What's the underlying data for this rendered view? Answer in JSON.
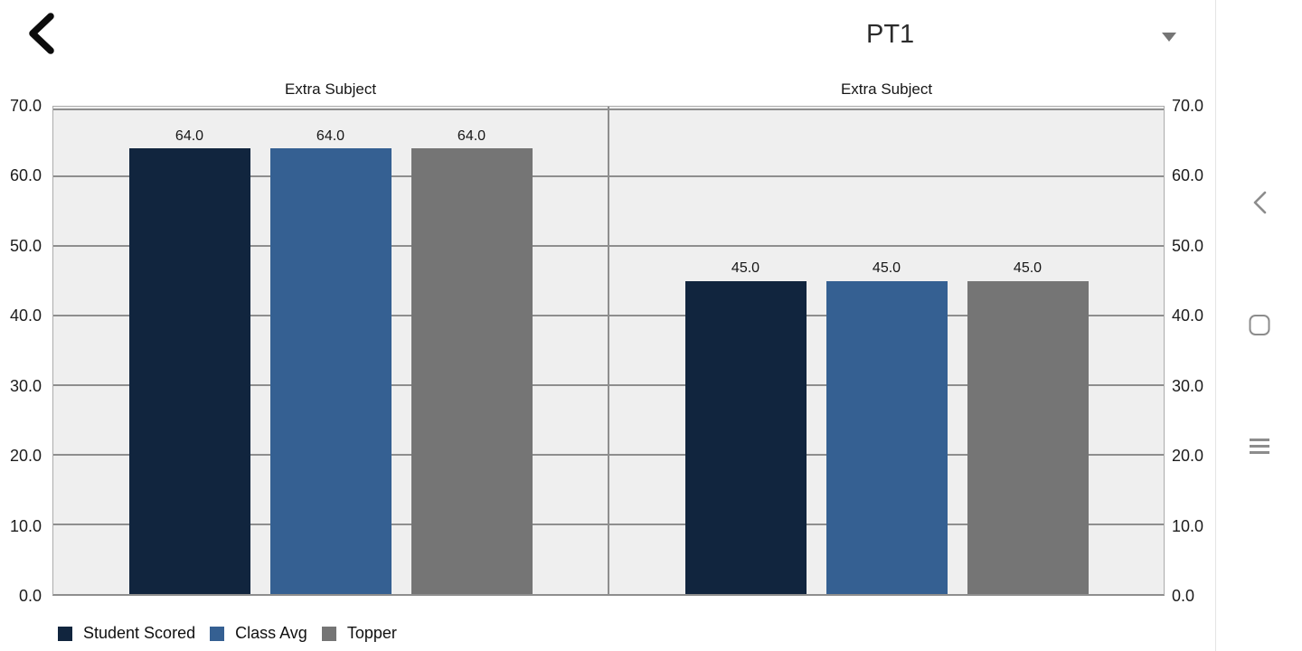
{
  "header": {
    "selector_value": "PT1"
  },
  "chart_data": {
    "type": "bar",
    "ylim": [
      0,
      70
    ],
    "yticks": [
      70,
      60,
      50,
      40,
      30,
      20,
      10,
      0
    ],
    "ytick_format_decimals": 1,
    "grid": true,
    "panels": [
      {
        "title": "Extra Subject",
        "values": [
          64.0,
          64.0,
          64.0
        ]
      },
      {
        "title": "Extra Subject",
        "values": [
          45.0,
          45.0,
          45.0
        ]
      }
    ],
    "series": [
      {
        "name": "Student Scored",
        "color": "#11253E"
      },
      {
        "name": "Class Avg",
        "color": "#356092"
      },
      {
        "name": "Topper",
        "color": "#757575"
      }
    ],
    "value_labels": true,
    "legend_position": "bottom-left",
    "plot_background": "#EFEFEF",
    "gridline_color": "#8E8E8E"
  },
  "icons": {
    "header_back": "back-icon",
    "dropdown": "chevron-down-icon",
    "nav_back": "nav-back-icon",
    "nav_home": "nav-home-icon",
    "nav_recents": "nav-recents-icon"
  }
}
